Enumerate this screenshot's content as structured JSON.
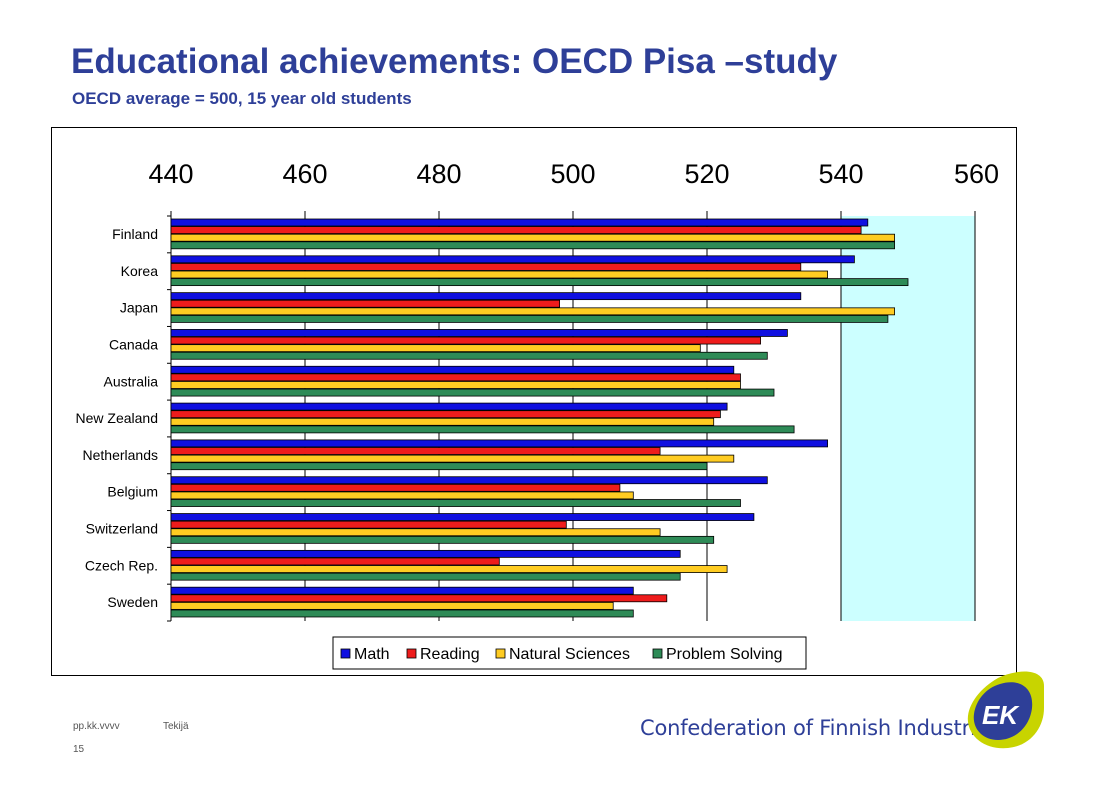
{
  "header": {
    "title": "Educational achievements: OECD Pisa –study",
    "subtitle": "OECD average = 500, 15 year old students"
  },
  "footer": {
    "date": "pp.kk.vvvv",
    "author": "Tekijä",
    "page_number": "15",
    "organization": "Confederation of Finnish Industries",
    "logo_text": "EK"
  },
  "colors": {
    "title": "#2e3f98",
    "plot_background": "#ccffff",
    "math": "#1010e0",
    "reading": "#ee1c1c",
    "natural_sciences": "#ffcc22",
    "problem_solving": "#2e8b57"
  },
  "chart_data": {
    "type": "bar",
    "orientation": "horizontal",
    "categories": [
      "Finland",
      "Korea",
      "Japan",
      "Canada",
      "Australia",
      "New Zealand",
      "Netherlands",
      "Belgium",
      "Switzerland",
      "Czech Rep.",
      "Sweden"
    ],
    "series": [
      {
        "name": "Math",
        "color": "#1010e0",
        "values": [
          544,
          542,
          534,
          532,
          524,
          523,
          538,
          529,
          527,
          516,
          509
        ]
      },
      {
        "name": "Reading",
        "color": "#ee1c1c",
        "values": [
          543,
          534,
          498,
          528,
          525,
          522,
          513,
          507,
          499,
          489,
          514
        ]
      },
      {
        "name": "Natural Sciences",
        "color": "#ffcc22",
        "values": [
          548,
          538,
          548,
          519,
          525,
          521,
          524,
          509,
          513,
          523,
          506
        ]
      },
      {
        "name": "Problem Solving",
        "color": "#2e8b57",
        "values": [
          548,
          550,
          547,
          529,
          530,
          533,
          520,
          525,
          521,
          516,
          509
        ]
      }
    ],
    "xlim": [
      440,
      560
    ],
    "xticks": [
      "440",
      "460",
      "480",
      "500",
      "520",
      "540",
      "560"
    ],
    "shaded_region_start": 540,
    "grid": true,
    "legend": "bottom"
  }
}
